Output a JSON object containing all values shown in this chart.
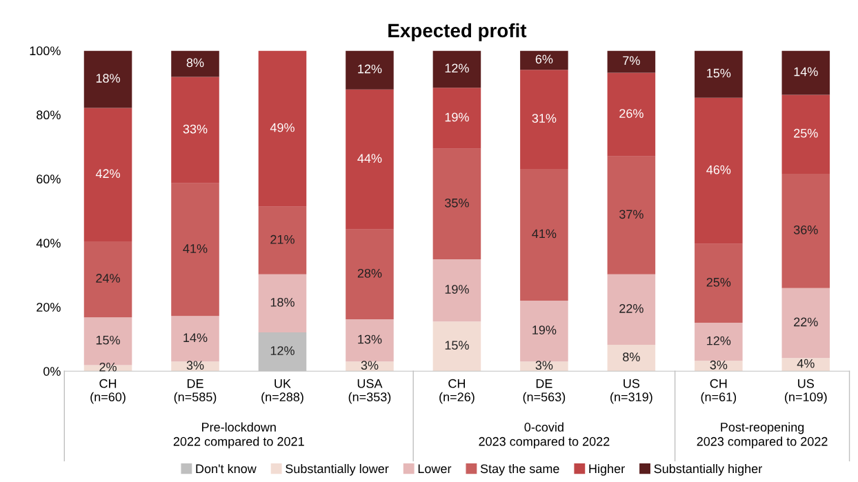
{
  "chart_data": {
    "type": "bar",
    "title": "Expected profit",
    "stacked": true,
    "categories": [
      "CH\n(n=60)",
      "DE\n(n=585)",
      "UK\n(n=288)",
      "USA\n(n=353)",
      "CH\n(n=26)",
      "DE\n(n=563)",
      "US\n(n=319)",
      "CH\n(n=61)",
      "US\n(n=109)"
    ],
    "series": [
      {
        "name": "Don't know",
        "color": "#bfbfbf",
        "values": [
          null,
          null,
          12.1,
          null,
          null,
          null,
          null,
          null,
          null
        ],
        "value_labels": [
          null,
          null,
          "12%",
          null,
          null,
          null,
          null,
          null,
          null
        ]
      },
      {
        "name": "Substantially lower",
        "color": "#f2dcd3",
        "values": [
          1.9,
          3.0,
          null,
          3.0,
          15.5,
          3.0,
          8.2,
          3.2,
          4.1
        ],
        "value_labels": [
          "2%",
          "3%",
          null,
          "3%",
          "15%",
          "3%",
          "8%",
          "3%",
          "4%"
        ]
      },
      {
        "name": "Lower",
        "color": "#e6b8b8",
        "values": [
          14.9,
          14.2,
          18.1,
          13.2,
          19.4,
          19.0,
          22.0,
          11.9,
          21.8
        ],
        "value_labels": [
          "15%",
          "14%",
          "18%",
          "13%",
          "19%",
          "19%",
          "22%",
          "12%",
          "22%"
        ]
      },
      {
        "name": "Stay the same",
        "color": "#c85f5e",
        "values": [
          23.7,
          41.4,
          21.1,
          28.0,
          34.5,
          41.1,
          36.8,
          24.6,
          35.7
        ],
        "value_labels": [
          "24%",
          "41%",
          "21%",
          "28%",
          "35%",
          "41%",
          "37%",
          "25%",
          "36%"
        ]
      },
      {
        "name": "Higher",
        "color": "#bf4546",
        "values": [
          41.6,
          33.2,
          48.7,
          43.7,
          19.0,
          30.9,
          26.1,
          45.6,
          24.6
        ],
        "value_labels": [
          "42%",
          "33%",
          "49%",
          "44%",
          "19%",
          "31%",
          "26%",
          "46%",
          "25%"
        ]
      },
      {
        "name": "Substantially higher",
        "color": "#5a1e1e",
        "values": [
          17.9,
          8.2,
          null,
          12.1,
          11.6,
          6.0,
          6.9,
          14.7,
          13.8
        ],
        "value_labels": [
          "18%",
          "8%",
          null,
          "12%",
          "12%",
          "6%",
          "7%",
          "15%",
          "14%"
        ]
      }
    ],
    "ylim": [
      0,
      100
    ],
    "yticks": [
      {
        "value": 0,
        "label": "0%"
      },
      {
        "value": 20,
        "label": "20%"
      },
      {
        "value": 40,
        "label": "40%"
      },
      {
        "value": 60,
        "label": "60%"
      },
      {
        "value": 80,
        "label": "80%"
      },
      {
        "value": 100,
        "label": "100%"
      }
    ],
    "annotations": [
      "Pre-lockdown\n2022 compared to 2021",
      "0-covid\n2023 compared to 2022",
      "Post-reopening\n2023 compared to 2022"
    ],
    "legend": "bottom",
    "grid": false
  }
}
